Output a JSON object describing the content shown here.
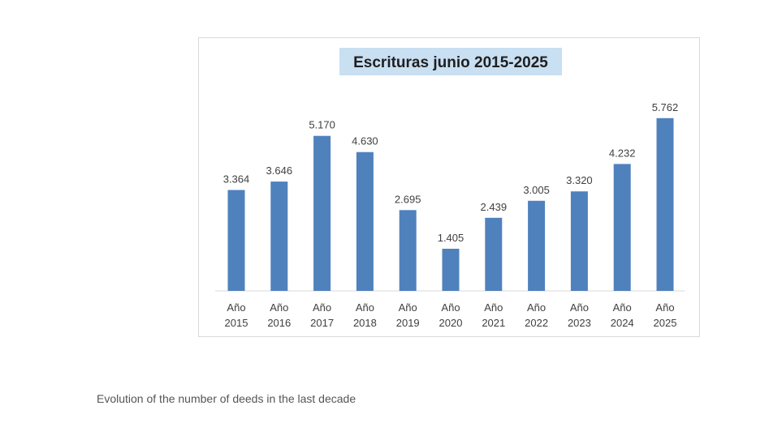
{
  "caption": "Evolution of the number of deeds in the last decade",
  "chart_data": {
    "type": "bar",
    "title": "Escrituras junio 2015-2025",
    "categories": [
      [
        "Año",
        "2015"
      ],
      [
        "Año",
        "2016"
      ],
      [
        "Año",
        "2017"
      ],
      [
        "Año",
        "2018"
      ],
      [
        "Año",
        "2019"
      ],
      [
        "Año",
        "2020"
      ],
      [
        "Año",
        "2021"
      ],
      [
        "Año",
        "2022"
      ],
      [
        "Año",
        "2023"
      ],
      [
        "Año",
        "2024"
      ],
      [
        "Año",
        "2025"
      ]
    ],
    "values": [
      3364,
      3646,
      5170,
      4630,
      2695,
      1405,
      2439,
      3005,
      3320,
      4232,
      5762
    ],
    "value_labels": [
      "3.364",
      "3.646",
      "5.170",
      "4.630",
      "2.695",
      "1.405",
      "2.439",
      "3.005",
      "3.320",
      "4.232",
      "5.762"
    ],
    "xlabel": "",
    "ylabel": "",
    "ylim": [
      0,
      6000
    ],
    "grid": false,
    "legend": false,
    "colors": {
      "bar": "#4f81bd",
      "title_background": "#c9dff2"
    }
  }
}
